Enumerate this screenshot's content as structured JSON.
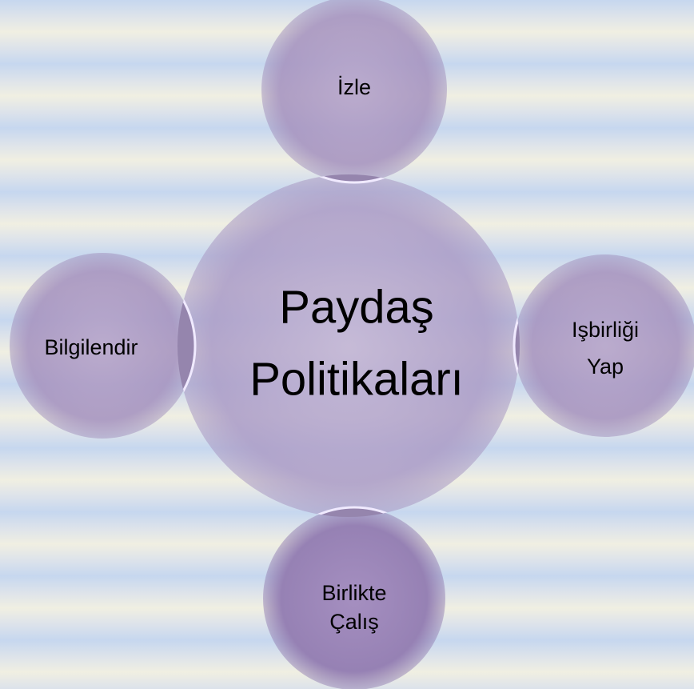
{
  "center": {
    "lines": [
      "Paydaş",
      "Politikaları"
    ]
  },
  "nodes": [
    {
      "lines": [
        "İzle"
      ]
    },
    {
      "lines": [
        "Işbirliği",
        "Yap"
      ]
    },
    {
      "lines": [
        "Birlikte",
        "Çalış"
      ]
    },
    {
      "lines": [
        "Bilgilendir"
      ]
    }
  ]
}
